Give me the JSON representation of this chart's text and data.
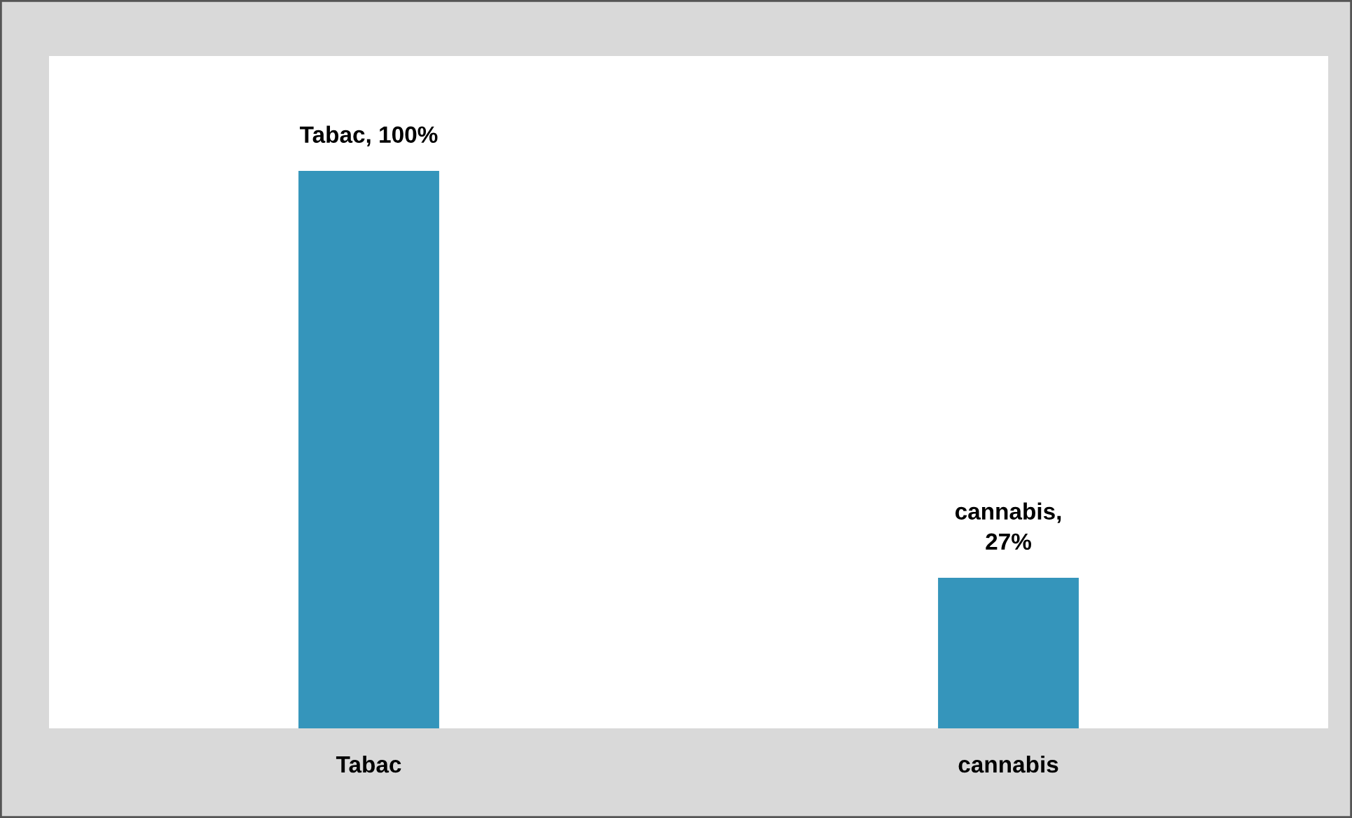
{
  "chart_data": {
    "type": "bar",
    "categories": [
      "Tabac",
      "cannabis"
    ],
    "values": [
      100,
      27
    ],
    "value_labels": [
      "Tabac, 100%",
      "cannabis,\n27%"
    ],
    "color": "#3595bb",
    "grid": false,
    "legend": false
  }
}
